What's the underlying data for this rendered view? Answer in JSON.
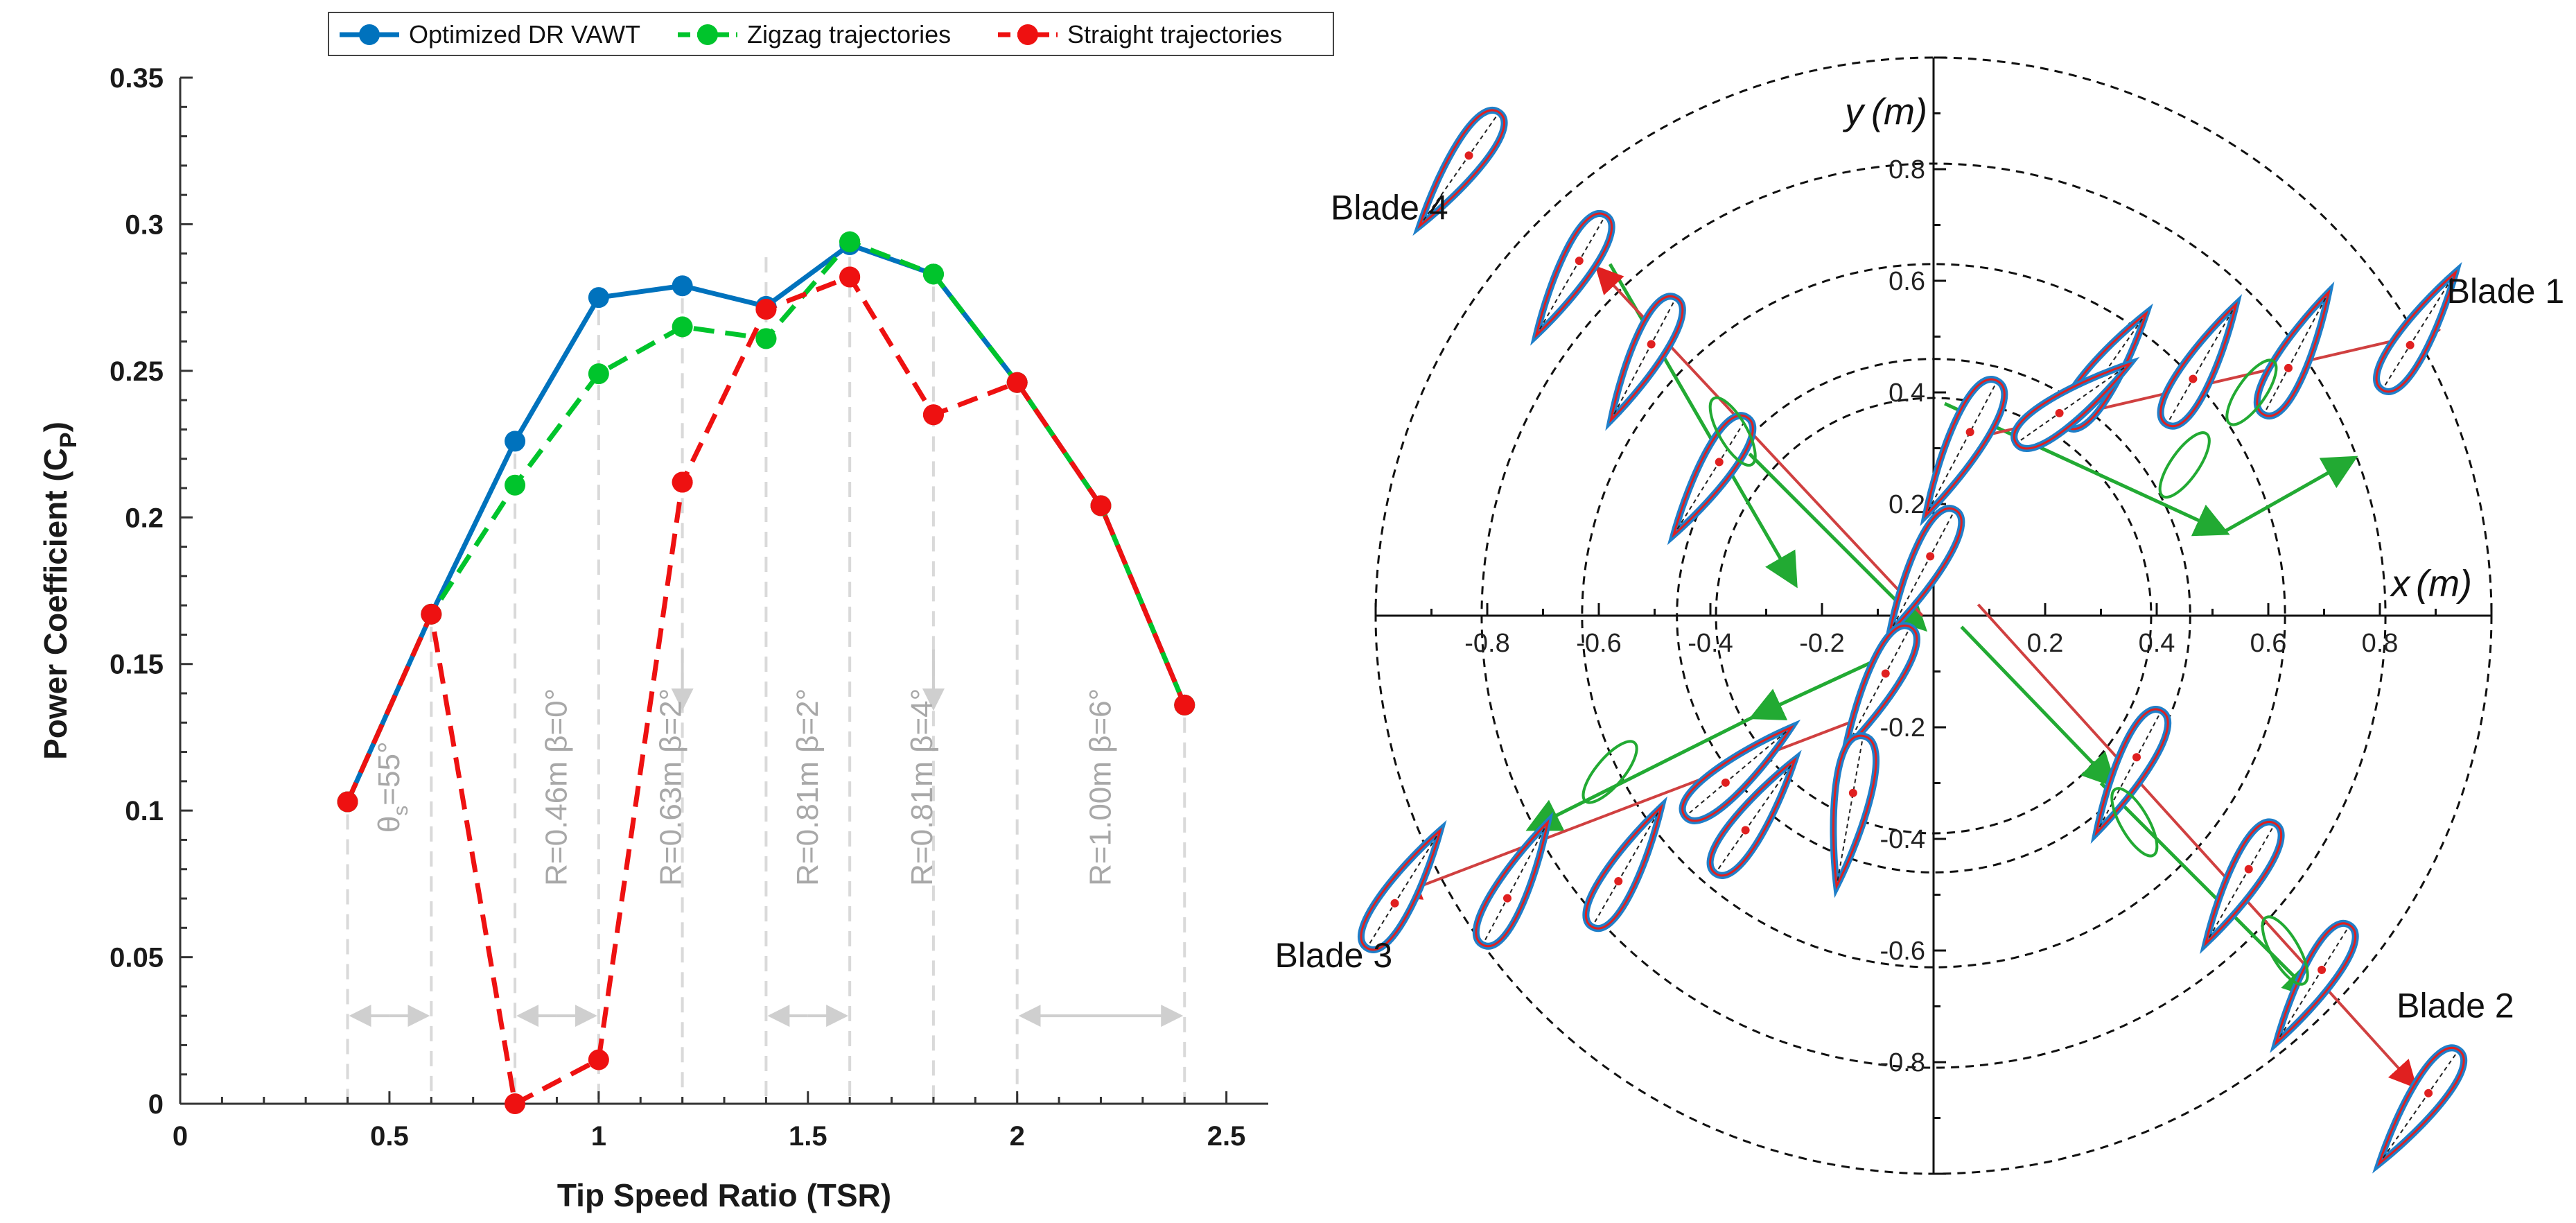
{
  "chart_data": [
    {
      "type": "line",
      "title": "",
      "xlabel": "Tip Speed Ratio (TSR)",
      "ylabel": "Power Coefficient (C",
      "ylabel_sub": "P",
      "ylabel_close": ")",
      "xlim": [
        0,
        2.6
      ],
      "ylim": [
        0,
        0.35
      ],
      "xticks": [
        0,
        0.5,
        1,
        1.5,
        2,
        2.5
      ],
      "xtick_labels": [
        "0",
        "0.5",
        "1",
        "1.5",
        "2",
        "2.5"
      ],
      "yticks": [
        0,
        0.05,
        0.1,
        0.15,
        0.2,
        0.25,
        0.3,
        0.35
      ],
      "ytick_labels": [
        "0",
        "0.05",
        "0.1",
        "0.15",
        "0.2",
        "0.25",
        "0.3",
        "0.35"
      ],
      "legend_position": "top",
      "series": [
        {
          "name": "Optimized DR VAWT",
          "color": "#0072bd",
          "style": "solid",
          "x": [
            0.4,
            0.6,
            0.8,
            1.0,
            1.2,
            1.4,
            1.6,
            1.8,
            2.0,
            2.2,
            2.4
          ],
          "y": [
            0.103,
            0.167,
            0.226,
            0.275,
            0.279,
            0.272,
            0.293,
            0.283,
            0.246,
            0.204,
            0.136
          ]
        },
        {
          "name": "Zigzag trajectories",
          "color": "#00c42c",
          "style": "dashed",
          "x": [
            0.4,
            0.6,
            0.8,
            1.0,
            1.2,
            1.4,
            1.6,
            1.8,
            2.0,
            2.2,
            2.4
          ],
          "y": [
            0.103,
            0.167,
            0.211,
            0.249,
            0.265,
            0.261,
            0.294,
            0.283,
            0.246,
            0.204,
            0.136
          ]
        },
        {
          "name": "Straight trajectories",
          "color": "#ee1111",
          "style": "dashed",
          "x": [
            0.4,
            0.6,
            0.8,
            1.0,
            1.2,
            1.4,
            1.6,
            1.8,
            2.0,
            2.2,
            2.4
          ],
          "y": [
            0.103,
            0.167,
            0.0,
            0.015,
            0.212,
            0.271,
            0.282,
            0.235,
            0.246,
            0.204,
            0.136
          ]
        }
      ],
      "regions": [
        {
          "label_main": "θ",
          "label_sub": "s",
          "label_rest": "=55°",
          "x0": 0.4,
          "x1": 0.6,
          "y_top": 0.103
        },
        {
          "label_main": "R=0.46m β=0°",
          "label_sub": "",
          "label_rest": "",
          "x0": 0.8,
          "x1": 1.0,
          "y_top": 0.226
        },
        {
          "label_main": "R=0.63m β=2°",
          "label_sub": "",
          "label_rest": "",
          "x0": 1.2,
          "x1": 1.2,
          "y_top": 0.279
        },
        {
          "label_main": "R=0.81m β=2°",
          "label_sub": "",
          "label_rest": "",
          "x0": 1.4,
          "x1": 1.6,
          "y_top": 0.293
        },
        {
          "label_main": "R=0.81m β=4°",
          "label_sub": "",
          "label_rest": "",
          "x0": 1.8,
          "x1": 1.8,
          "y_top": 0.283
        },
        {
          "label_main": "R=1.00m β=6°",
          "label_sub": "",
          "label_rest": "",
          "x0": 2.0,
          "x1": 2.4,
          "y_top": 0.246
        }
      ]
    },
    {
      "type": "diagram",
      "title": "",
      "xlabel": "x",
      "xlabel_unit": "(m)",
      "ylabel": "y",
      "ylabel_unit": "(m)",
      "axis_range": [
        -1.0,
        1.0
      ],
      "xtick_values": [
        -0.8,
        -0.6,
        -0.4,
        -0.2,
        0.2,
        0.4,
        0.6,
        0.8
      ],
      "xtick_labels": [
        "-0.8",
        "-0.6",
        "-0.4",
        "-0.2",
        "0.2",
        "0.4",
        "0.6",
        "0.8"
      ],
      "ytick_values": [
        0.8,
        0.6,
        0.4,
        0.2,
        -0.2,
        -0.4,
        -0.6,
        -0.8
      ],
      "ytick_labels": [
        "0.8",
        "0.6",
        "0.4",
        "0.2",
        "-0.2",
        "-0.4",
        "-0.6",
        "-0.8"
      ],
      "circle_radii": [
        0.46,
        0.63,
        0.81,
        1.0
      ],
      "airfoil_positions": [
        {
          "x": -0.85,
          "y": 0.8
        },
        {
          "x": -0.65,
          "y": 0.61
        },
        {
          "x": -0.52,
          "y": 0.46
        },
        {
          "x": -0.4,
          "y": 0.25
        },
        {
          "x": 0.31,
          "y": 0.44
        },
        {
          "x": 0.48,
          "y": 0.45
        },
        {
          "x": 0.65,
          "y": 0.47
        },
        {
          "x": 0.87,
          "y": 0.51
        },
        {
          "x": 0.35,
          "y": -0.28
        },
        {
          "x": 0.55,
          "y": -0.48
        },
        {
          "x": 0.68,
          "y": -0.66
        },
        {
          "x": 0.87,
          "y": -0.88
        },
        {
          "x": -0.32,
          "y": -0.36
        },
        {
          "x": -0.55,
          "y": -0.45
        },
        {
          "x": -0.75,
          "y": -0.48
        },
        {
          "x": -0.95,
          "y": -0.49
        }
      ],
      "blade_labels": [
        {
          "text": "Blade 1",
          "anchor": "start",
          "x": 0.92,
          "y": 0.56
        },
        {
          "text": "Blade 2",
          "anchor": "start",
          "x": 0.83,
          "y": -0.72
        },
        {
          "text": "Blade 3",
          "anchor": "end",
          "x": -0.97,
          "y": -0.63
        },
        {
          "text": "Blade 4",
          "anchor": "end",
          "x": -0.87,
          "y": 0.71
        }
      ]
    }
  ]
}
